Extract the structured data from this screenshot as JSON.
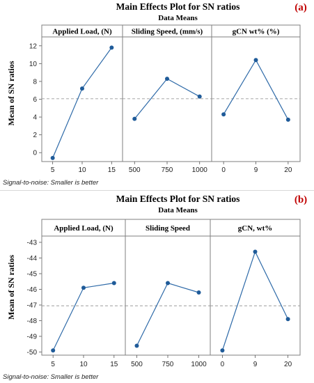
{
  "chart_data": [
    {
      "type": "line",
      "panel_label": "(a)",
      "title": "Main Effects Plot for SN ratios",
      "subtitle": "Data Means",
      "ylabel": "Mean of SN ratios",
      "footnote": "Signal-to-noise: Smaller is better",
      "ylim": [
        -1,
        13
      ],
      "yticks": [
        0,
        2,
        4,
        6,
        8,
        10,
        12
      ],
      "reference_line": 6.05,
      "grid": false,
      "line_color": "#2e6aa8",
      "marker_color": "#1f5b99",
      "facets": [
        {
          "label": "Applied Load, (N)",
          "categories": [
            "5",
            "10",
            "15"
          ],
          "values": [
            -0.6,
            7.2,
            11.8
          ]
        },
        {
          "label": "Sliding Speed, (mm/s)",
          "categories": [
            "500",
            "750",
            "1000"
          ],
          "values": [
            3.8,
            8.3,
            6.3
          ]
        },
        {
          "label": "gCN wt% (%)",
          "categories": [
            "0",
            "9",
            "20"
          ],
          "values": [
            4.3,
            10.4,
            3.7
          ]
        }
      ]
    },
    {
      "type": "line",
      "panel_label": "(b)",
      "title": "Main Effects Plot for SN ratios",
      "subtitle": "Data Means",
      "ylabel": "Mean of SN ratios",
      "footnote": "Signal-to-noise: Smaller is better",
      "ylim": [
        -50.2,
        -42.6
      ],
      "yticks": [
        -50,
        -49,
        -48,
        -47,
        -46,
        -45,
        -44,
        -43
      ],
      "reference_line": -47.05,
      "grid": false,
      "line_color": "#2e6aa8",
      "marker_color": "#1f5b99",
      "facets": [
        {
          "label": "Applied Load, (N)",
          "categories": [
            "5",
            "10",
            "15"
          ],
          "values": [
            -49.9,
            -45.9,
            -45.6
          ]
        },
        {
          "label": "Sliding Speed",
          "categories": [
            "500",
            "750",
            "1000"
          ],
          "values": [
            -49.6,
            -45.6,
            -46.2
          ]
        },
        {
          "label": "gCN, wt%",
          "categories": [
            "0",
            "9",
            "20"
          ],
          "values": [
            -49.9,
            -43.6,
            -47.9
          ]
        }
      ]
    }
  ]
}
